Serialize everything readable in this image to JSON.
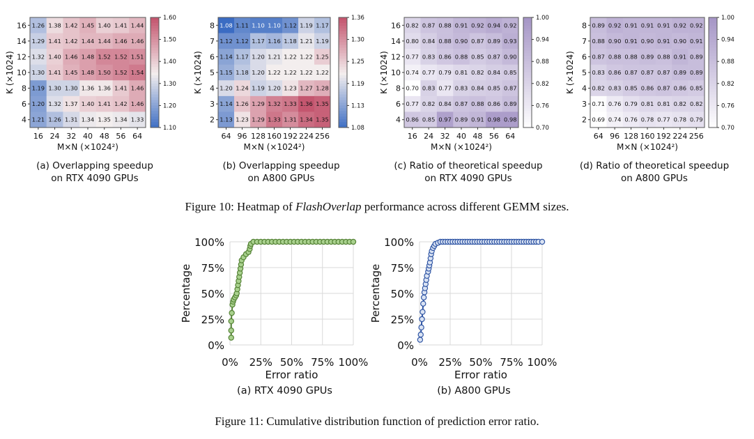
{
  "figure10": {
    "caption_prefix": "Figure 10: Heatmap of ",
    "caption_italic": "FlashOverlap",
    "caption_suffix": " performance across different GEMM sizes."
  },
  "figure11": {
    "caption": "Figure 11: Cumulative distribution function of prediction error ratio."
  },
  "chart_data": [
    {
      "type": "heatmap",
      "caption_lines": [
        "(a) Overlapping speedup",
        "on RTX 4090 GPUs"
      ],
      "xlabel": "M×N (×1024²)",
      "ylabel": "K (×1024)",
      "x_ticks": [
        "16",
        "24",
        "32",
        "40",
        "48",
        "56",
        "64"
      ],
      "y_ticks": [
        "16",
        "14",
        "12",
        "10",
        "8",
        "6",
        "4"
      ],
      "values": [
        [
          "1.26",
          "1.38",
          "1.42",
          "1.45",
          "1.40",
          "1.41",
          "1.44"
        ],
        [
          "1.29",
          "1.41",
          "1.42",
          "1.44",
          "1.44",
          "1.46",
          "1.46"
        ],
        [
          "1.32",
          "1.40",
          "1.46",
          "1.48",
          "1.52",
          "1.52",
          "1.51"
        ],
        [
          "1.30",
          "1.41",
          "1.45",
          "1.48",
          "1.50",
          "1.52",
          "1.54"
        ],
        [
          "1.19",
          "1.30",
          "1.30",
          "1.36",
          "1.36",
          "1.41",
          "1.46"
        ],
        [
          "1.20",
          "1.32",
          "1.37",
          "1.40",
          "1.41",
          "1.42",
          "1.46"
        ],
        [
          "1.21",
          "1.26",
          "1.31",
          "1.34",
          "1.35",
          "1.34",
          "1.33"
        ]
      ],
      "colorbar_ticks": [
        "1.10",
        "1.20",
        "1.30",
        "1.40",
        "1.50",
        "1.60"
      ],
      "vmin": 1.1,
      "vmax": 1.6,
      "colormap": "coolwarm",
      "colors": {
        "low": "#3b6cc3",
        "mid": "#f3eeee",
        "high": "#c4566f"
      }
    },
    {
      "type": "heatmap",
      "caption_lines": [
        "(b) Overlapping speedup",
        "on A800 GPUs"
      ],
      "xlabel": "M×N (×1024²)",
      "ylabel": "K (×1024)",
      "x_ticks": [
        "64",
        "96",
        "128",
        "160",
        "192",
        "224",
        "256"
      ],
      "y_ticks": [
        "8",
        "7",
        "6",
        "5",
        "4",
        "3",
        "2"
      ],
      "values": [
        [
          "1.08",
          "1.11",
          "1.10",
          "1.10",
          "1.12",
          "1.19",
          "1.17"
        ],
        [
          "1.12",
          "1.12",
          "1.17",
          "1.16",
          "1.18",
          "1.21",
          "1.19"
        ],
        [
          "1.14",
          "1.17",
          "1.20",
          "1.21",
          "1.22",
          "1.22",
          "1.25"
        ],
        [
          "1.15",
          "1.18",
          "1.20",
          "1.22",
          "1.22",
          "1.22",
          "1.22"
        ],
        [
          "1.20",
          "1.24",
          "1.19",
          "1.20",
          "1.23",
          "1.27",
          "1.28"
        ],
        [
          "1.14",
          "1.26",
          "1.29",
          "1.32",
          "1.33",
          "1.36",
          "1.35"
        ],
        [
          "1.13",
          "1.23",
          "1.29",
          "1.33",
          "1.31",
          "1.34",
          "1.35"
        ]
      ],
      "colorbar_ticks": [
        "1.08",
        "1.13",
        "1.19",
        "1.25",
        "1.30",
        "1.36"
      ],
      "vmin": 1.08,
      "vmax": 1.36,
      "colormap": "coolwarm",
      "colors": {
        "low": "#3b6cc3",
        "mid": "#f3eeee",
        "high": "#c4566f"
      }
    },
    {
      "type": "heatmap",
      "caption_lines": [
        "(c) Ratio of theoretical speedup",
        "on RTX 4090 GPUs"
      ],
      "xlabel": "M×N (×1024²)",
      "ylabel": "K (×1024)",
      "x_ticks": [
        "16",
        "24",
        "32",
        "40",
        "48",
        "56",
        "64"
      ],
      "y_ticks": [
        "16",
        "14",
        "12",
        "10",
        "8",
        "6",
        "4"
      ],
      "values": [
        [
          "0.82",
          "0.87",
          "0.88",
          "0.91",
          "0.92",
          "0.94",
          "0.92"
        ],
        [
          "0.80",
          "0.84",
          "0.88",
          "0.90",
          "0.87",
          "0.89",
          "0.93"
        ],
        [
          "0.77",
          "0.83",
          "0.86",
          "0.88",
          "0.85",
          "0.87",
          "0.90"
        ],
        [
          "0.74",
          "0.77",
          "0.79",
          "0.81",
          "0.82",
          "0.84",
          "0.85"
        ],
        [
          "0.70",
          "0.83",
          "0.77",
          "0.83",
          "0.84",
          "0.85",
          "0.87"
        ],
        [
          "0.77",
          "0.82",
          "0.84",
          "0.87",
          "0.88",
          "0.86",
          "0.89"
        ],
        [
          "0.86",
          "0.85",
          "0.97",
          "0.89",
          "0.91",
          "0.98",
          "0.98"
        ]
      ],
      "colorbar_ticks": [
        "0.70",
        "0.76",
        "0.82",
        "0.88",
        "0.94",
        "1.00"
      ],
      "vmin": 0.7,
      "vmax": 1.0,
      "colormap": "purples",
      "colors": {
        "low": "#ffffff",
        "high": "#a696c6"
      }
    },
    {
      "type": "heatmap",
      "caption_lines": [
        "(d) Ratio of theoretical speedup",
        "on A800 GPUs"
      ],
      "xlabel": "M×N (×1024²)",
      "ylabel": "K (×1024)",
      "x_ticks": [
        "64",
        "96",
        "128",
        "160",
        "192",
        "224",
        "256"
      ],
      "y_ticks": [
        "8",
        "7",
        "6",
        "5",
        "4",
        "3",
        "2"
      ],
      "values": [
        [
          "0.89",
          "0.92",
          "0.91",
          "0.91",
          "0.91",
          "0.92",
          "0.92"
        ],
        [
          "0.88",
          "0.90",
          "0.91",
          "0.90",
          "0.91",
          "0.90",
          "0.91"
        ],
        [
          "0.87",
          "0.88",
          "0.88",
          "0.89",
          "0.88",
          "0.91",
          "0.89"
        ],
        [
          "0.83",
          "0.86",
          "0.87",
          "0.87",
          "0.87",
          "0.89",
          "0.89"
        ],
        [
          "0.82",
          "0.83",
          "0.85",
          "0.86",
          "0.87",
          "0.86",
          "0.85"
        ],
        [
          "0.71",
          "0.76",
          "0.79",
          "0.81",
          "0.81",
          "0.82",
          "0.82"
        ],
        [
          "0.69",
          "0.74",
          "0.76",
          "0.78",
          "0.77",
          "0.78",
          "0.79"
        ]
      ],
      "colorbar_ticks": [
        "0.70",
        "0.76",
        "0.82",
        "0.88",
        "0.94",
        "1.00"
      ],
      "vmin": 0.7,
      "vmax": 1.0,
      "colormap": "purples",
      "colors": {
        "low": "#ffffff",
        "high": "#a696c6"
      }
    },
    {
      "type": "line",
      "caption": "(a) RTX 4090 GPUs",
      "xlabel": "Error ratio",
      "ylabel": "Percentage",
      "x_ticks": [
        "0%",
        "25%",
        "50%",
        "75%",
        "100%"
      ],
      "y_ticks": [
        "0%",
        "25%",
        "50%",
        "75%",
        "100%"
      ],
      "xlim": [
        0,
        100
      ],
      "ylim": [
        0,
        100
      ],
      "grid": true,
      "colors": {
        "line": "#548235",
        "marker_fill": "#a9d18e"
      },
      "points": [
        [
          1,
          7
        ],
        [
          1,
          14
        ],
        [
          1,
          23
        ],
        [
          1.5,
          31
        ],
        [
          2,
          39
        ],
        [
          2.5,
          42
        ],
        [
          3,
          44
        ],
        [
          4,
          46
        ],
        [
          5,
          48
        ],
        [
          5.5,
          50
        ],
        [
          6,
          54
        ],
        [
          6.5,
          58
        ],
        [
          7,
          62
        ],
        [
          7.5,
          66
        ],
        [
          8,
          70
        ],
        [
          8.5,
          74
        ],
        [
          9,
          78
        ],
        [
          9.5,
          82
        ],
        [
          11,
          85
        ],
        [
          13,
          88
        ],
        [
          15,
          90
        ],
        [
          16,
          93
        ],
        [
          16.5,
          96
        ],
        [
          17,
          98
        ],
        [
          19,
          100
        ],
        [
          22,
          100
        ],
        [
          25,
          100
        ],
        [
          28,
          100
        ],
        [
          31,
          100
        ],
        [
          34,
          100
        ],
        [
          37,
          100
        ],
        [
          40,
          100
        ],
        [
          43,
          100
        ],
        [
          46,
          100
        ],
        [
          49,
          100
        ],
        [
          52,
          100
        ],
        [
          55,
          100
        ],
        [
          58,
          100
        ],
        [
          61,
          100
        ],
        [
          64,
          100
        ],
        [
          67,
          100
        ],
        [
          70,
          100
        ],
        [
          73,
          100
        ],
        [
          76,
          100
        ],
        [
          79,
          100
        ],
        [
          82,
          100
        ],
        [
          85,
          100
        ],
        [
          88,
          100
        ],
        [
          91,
          100
        ],
        [
          94,
          100
        ],
        [
          97,
          100
        ],
        [
          100,
          100
        ]
      ]
    },
    {
      "type": "line",
      "caption": "(b) A800 GPUs",
      "xlabel": "Error ratio",
      "ylabel": "Percentage",
      "x_ticks": [
        "0%",
        "25%",
        "50%",
        "75%",
        "100%"
      ],
      "y_ticks": [
        "0%",
        "25%",
        "50%",
        "75%",
        "100%"
      ],
      "xlim": [
        0,
        100
      ],
      "ylim": [
        0,
        100
      ],
      "grid": true,
      "colors": {
        "line": "#2f55a4",
        "marker_fill": "#dae3f3"
      },
      "points": [
        [
          0.5,
          5
        ],
        [
          1,
          10
        ],
        [
          1.5,
          17
        ],
        [
          2,
          25
        ],
        [
          2.5,
          32
        ],
        [
          3,
          40
        ],
        [
          3.5,
          46
        ],
        [
          4,
          51
        ],
        [
          4.5,
          55
        ],
        [
          5,
          59
        ],
        [
          5.5,
          63
        ],
        [
          6,
          67
        ],
        [
          7,
          71
        ],
        [
          7.5,
          74
        ],
        [
          8,
          77
        ],
        [
          8.5,
          80
        ],
        [
          9,
          84
        ],
        [
          9.5,
          88
        ],
        [
          10,
          91
        ],
        [
          11,
          94
        ],
        [
          12,
          96
        ],
        [
          13,
          98
        ],
        [
          15,
          99
        ],
        [
          17,
          100
        ],
        [
          19,
          100
        ],
        [
          21,
          100
        ],
        [
          23,
          100
        ],
        [
          25,
          100
        ],
        [
          27,
          100
        ],
        [
          29,
          100
        ],
        [
          31,
          100
        ],
        [
          33,
          100
        ],
        [
          35,
          100
        ],
        [
          37,
          100
        ],
        [
          39,
          100
        ],
        [
          41,
          100
        ],
        [
          43,
          100
        ],
        [
          45,
          100
        ],
        [
          47,
          100
        ],
        [
          49,
          100
        ],
        [
          51,
          100
        ],
        [
          53,
          100
        ],
        [
          55,
          100
        ],
        [
          57,
          100
        ],
        [
          59,
          100
        ],
        [
          61,
          100
        ],
        [
          63,
          100
        ],
        [
          65,
          100
        ],
        [
          67,
          100
        ],
        [
          69,
          100
        ],
        [
          71,
          100
        ],
        [
          73,
          100
        ],
        [
          75,
          100
        ],
        [
          77,
          100
        ],
        [
          79,
          100
        ],
        [
          81,
          100
        ],
        [
          83,
          100
        ],
        [
          85,
          100
        ],
        [
          87,
          100
        ],
        [
          89,
          100
        ],
        [
          91,
          100
        ],
        [
          93,
          100
        ],
        [
          95,
          100
        ],
        [
          97,
          100
        ],
        [
          100,
          100
        ]
      ]
    }
  ]
}
